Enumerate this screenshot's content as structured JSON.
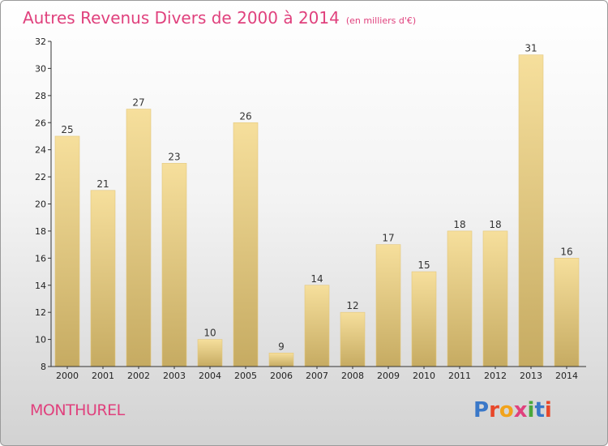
{
  "header": {
    "title": "Autres Revenus Divers de 2000 à 2014",
    "subtitle": "(en milliers d'€)"
  },
  "footer": {
    "commune": "MONTHUREL",
    "logo_text": "Proxiti",
    "logo_colors": [
      "#3a78c8",
      "#e8472a",
      "#f2a31b",
      "#e0417d",
      "#4aa83c",
      "#3a78c8",
      "#e8472a"
    ]
  },
  "colors": {
    "title": "#e0417d",
    "bar_top": "#f6df9c",
    "bar_bottom": "#c6ab62",
    "axis": "#333333"
  },
  "chart_data": {
    "type": "bar",
    "categories": [
      "2000",
      "2001",
      "2002",
      "2003",
      "2004",
      "2005",
      "2006",
      "2007",
      "2008",
      "2009",
      "2010",
      "2011",
      "2012",
      "2013",
      "2014"
    ],
    "values": [
      25,
      21,
      27,
      23,
      10,
      26,
      9,
      14,
      12,
      17,
      15,
      18,
      18,
      31,
      16
    ],
    "title": "Autres Revenus Divers de 2000 à 2014",
    "ylim": [
      8,
      32
    ],
    "yticks": [
      8,
      10,
      12,
      14,
      16,
      18,
      20,
      22,
      24,
      26,
      28,
      30,
      32
    ],
    "grid": false,
    "legend": "none"
  }
}
